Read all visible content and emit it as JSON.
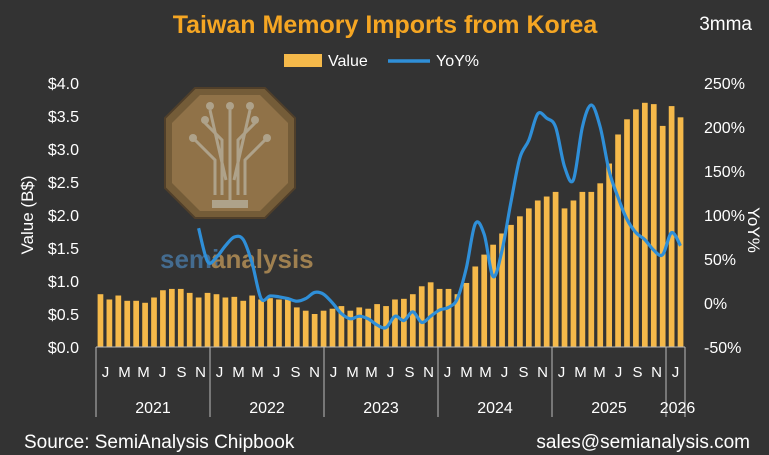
{
  "chart_data": {
    "type": "bar",
    "title": "Taiwan Memory Imports from Korea",
    "badge": "3mma",
    "ylabel": "Value (B$)",
    "y2label": "YoY%",
    "ylim": [
      0,
      4
    ],
    "y2lim": [
      -50,
      250
    ],
    "yticks": [
      "$0.0",
      "$0.5",
      "$1.0",
      "$1.5",
      "$2.0",
      "$2.5",
      "$3.0",
      "$3.5",
      "$4.0"
    ],
    "y2ticks": [
      "-50%",
      "0%",
      "50%",
      "100%",
      "150%",
      "200%",
      "250%"
    ],
    "legend": [
      "Value",
      "YoY%"
    ],
    "colors": {
      "bars": "#F5B94A",
      "line": "#2F8FD8",
      "title": "#F5A623",
      "background": "#333333"
    },
    "month_labels": [
      "J",
      "M",
      "M",
      "J",
      "S",
      "N",
      "J",
      "M",
      "M",
      "J",
      "S",
      "N",
      "J",
      "M",
      "M",
      "J",
      "S",
      "N",
      "J",
      "M",
      "M",
      "J",
      "S",
      "N",
      "J",
      "M",
      "M",
      "J",
      "S",
      "N",
      "J"
    ],
    "years": [
      "2021",
      "2022",
      "2023",
      "2024",
      "2025",
      "2026"
    ],
    "series": [
      {
        "name": "Value",
        "values": [
          0.8,
          0.72,
          0.78,
          0.7,
          0.7,
          0.67,
          0.75,
          0.86,
          0.88,
          0.88,
          0.82,
          0.75,
          0.82,
          0.8,
          0.75,
          0.76,
          0.7,
          0.78,
          0.72,
          0.74,
          0.72,
          0.72,
          0.6,
          0.55,
          0.5,
          0.55,
          0.58,
          0.62,
          0.55,
          0.6,
          0.58,
          0.65,
          0.62,
          0.72,
          0.73,
          0.8,
          0.92,
          0.98,
          0.88,
          0.88,
          0.8,
          0.97,
          1.22,
          1.4,
          1.55,
          1.72,
          1.85,
          1.98,
          2.1,
          2.22,
          2.28,
          2.35,
          2.1,
          2.22,
          2.35,
          2.35,
          2.48,
          2.78,
          3.22,
          3.45,
          3.6,
          3.7,
          3.68,
          3.35,
          3.65,
          3.48
        ]
      },
      {
        "name": "YoY%",
        "values": [
          85,
          47,
          52,
          65,
          75,
          72,
          45,
          5,
          8,
          7,
          5,
          2,
          5,
          12,
          10,
          0,
          -12,
          -18,
          -15,
          -18,
          -25,
          -28,
          -15,
          -20,
          -10,
          -22,
          -15,
          -8,
          -5,
          5,
          40,
          90,
          78,
          30,
          60,
          115,
          165,
          185,
          215,
          210,
          200,
          155,
          140,
          200,
          225,
          200,
          150,
          120,
          95,
          80,
          72,
          60,
          55,
          80,
          65
        ]
      }
    ]
  },
  "watermark": {
    "text_semi": "semi",
    "text_analysis": "analysis"
  },
  "footer": {
    "source": "Source: SemiAnalysis Chipbook",
    "contact": "sales@semianalysis.com"
  }
}
